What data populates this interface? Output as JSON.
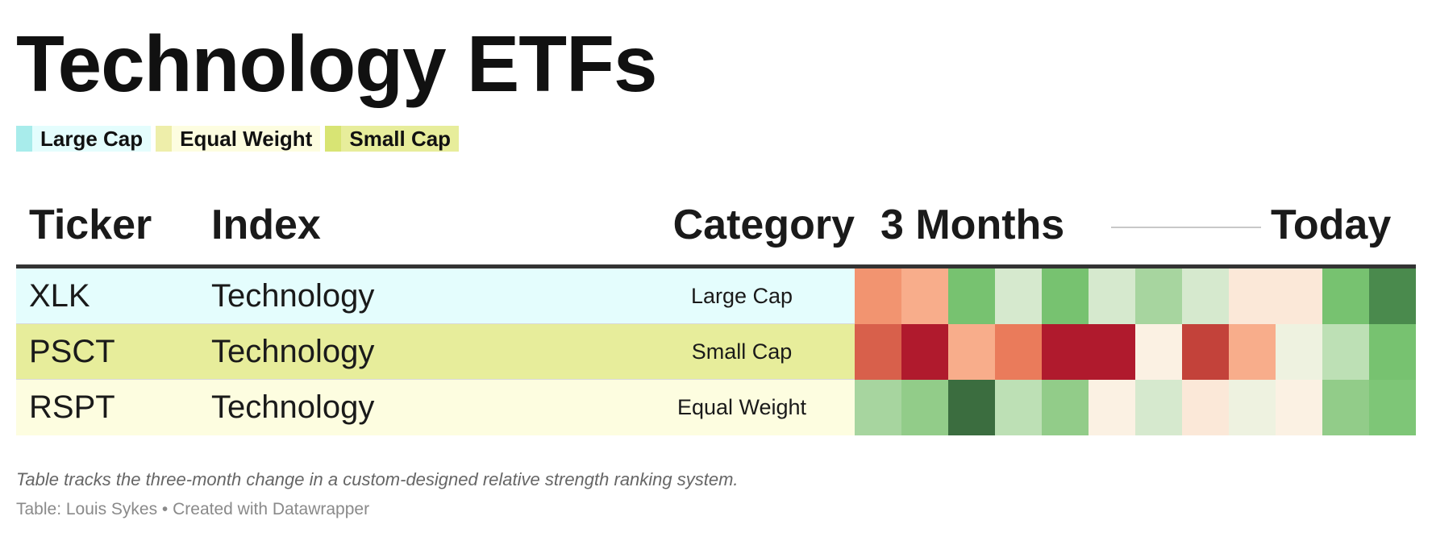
{
  "title": "Technology ETFs",
  "legend": [
    {
      "label": "Large Cap",
      "color": "#e4fdfd",
      "swatch": "#a8eceb"
    },
    {
      "label": "Equal Weight",
      "color": "#fdfde0",
      "swatch": "#eeeeaa"
    },
    {
      "label": "Small Cap",
      "color": "#e7ed9b",
      "swatch": "#d8e474"
    }
  ],
  "header": {
    "ticker": "Ticker",
    "index": "Index",
    "category": "Category",
    "range_start": "3 Months",
    "range_end": "Today"
  },
  "rows": [
    {
      "ticker": "XLK",
      "index": "Technology",
      "category": "Large Cap",
      "row_color": "#e4fdfd",
      "heat": [
        "#f29470",
        "#f8ad8b",
        "#77c270",
        "#d6e9ce",
        "#77c270",
        "#d6e9ce",
        "#a7d59f",
        "#d6e9ce",
        "#fbe8d8",
        "#fbe8d8",
        "#77c270",
        "#4a8a4d"
      ]
    },
    {
      "ticker": "PSCT",
      "index": "Technology",
      "category": "Small Cap",
      "row_color": "#e7ed9b",
      "heat": [
        "#d8604b",
        "#b01a2d",
        "#f8ad8b",
        "#ea7b5b",
        "#b01a2d",
        "#b01a2d",
        "#fbf1e3",
        "#c3423a",
        "#f8ad8b",
        "#eef2e0",
        "#bde0b5",
        "#77c270"
      ]
    },
    {
      "ticker": "RSPT",
      "index": "Technology",
      "category": "Equal Weight",
      "row_color": "#fdfde0",
      "heat": [
        "#a7d59f",
        "#92cc89",
        "#3b6d3f",
        "#bde0b5",
        "#92cc89",
        "#fbf1e3",
        "#d6e9ce",
        "#fbe8d8",
        "#eef2e0",
        "#fbf1e3",
        "#92cc89",
        "#7ec677"
      ]
    }
  ],
  "notes": "Table tracks the three-month change in a custom-designed relative strength ranking system.",
  "source": "Table: Louis Sykes • Created with Datawrapper",
  "chart_data": {
    "type": "table",
    "columns": [
      "Ticker",
      "Index",
      "Category",
      "3 Months",
      "Today"
    ],
    "rows": [
      [
        "XLK",
        "Technology",
        "Large Cap"
      ],
      [
        "PSCT",
        "Technology",
        "Small Cap"
      ],
      [
        "RSPT",
        "Technology",
        "Equal Weight"
      ]
    ],
    "heatmap_periods": 12
  }
}
